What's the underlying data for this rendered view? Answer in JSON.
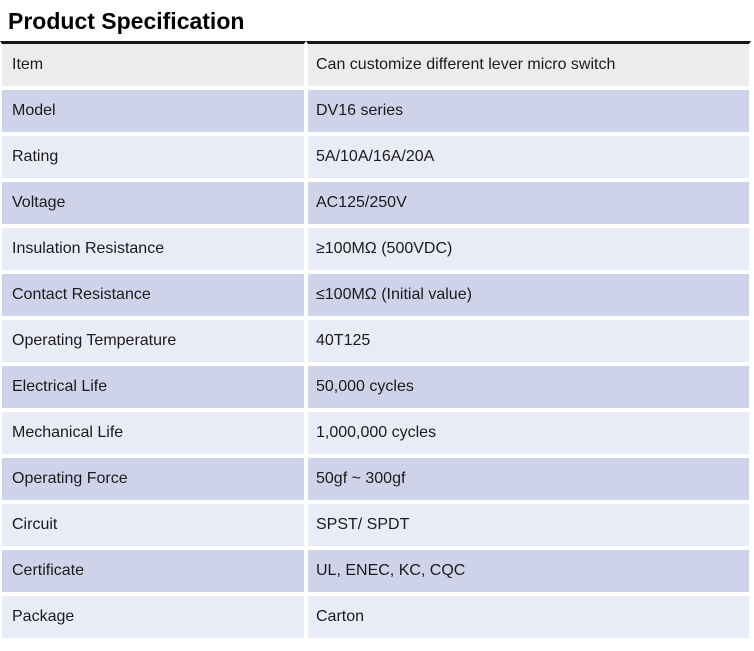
{
  "page": {
    "title": "Product Specification"
  },
  "colors": {
    "title-rule": "#151515",
    "header-row-bg": "#ececec",
    "row-dark-bg": "#ced3e9",
    "row-light-bg": "#e9ebf7",
    "text": "#1b1b1b"
  },
  "spec_table": {
    "rows": [
      {
        "label": "Item",
        "value": "Can customize different lever micro switch"
      },
      {
        "label": "Model",
        "value": "DV16 series"
      },
      {
        "label": "Rating",
        "value": "5A/10A/16A/20A"
      },
      {
        "label": "Voltage",
        "value": "AC125/250V"
      },
      {
        "label": "Insulation Resistance",
        "value": "≥100MΩ (500VDC)"
      },
      {
        "label": "Contact Resistance",
        "value": "≤100MΩ (Initial value)"
      },
      {
        "label": "Operating Temperature",
        "value": "40T125"
      },
      {
        "label": "Electrical Life",
        "value": "50,000 cycles"
      },
      {
        "label": "Mechanical Life",
        "value": "1,000,000 cycles"
      },
      {
        "label": "Operating Force",
        "value": "50gf ~ 300gf"
      },
      {
        "label": "Circuit",
        "value": "SPST/ SPDT"
      },
      {
        "label": "Certificate",
        "value": "UL, ENEC, KC, CQC"
      },
      {
        "label": "Package",
        "value": "Carton"
      }
    ]
  }
}
